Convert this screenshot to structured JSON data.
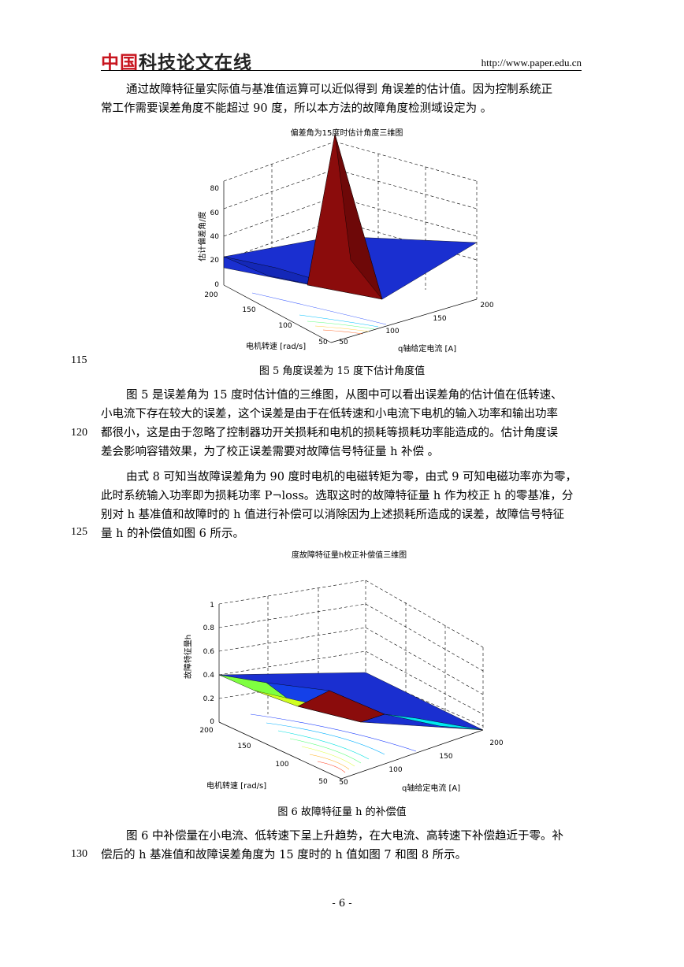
{
  "header": {
    "logo_red": "中国",
    "logo_dark": "科技论文在线",
    "url": "http://www.paper.edu.cn"
  },
  "para1": [
    "通过故障特征量实际值与基准值运算可以近似得到 角误差的估计值。因为控制系统正",
    "常工作需要误差角度不能超过 90 度，所以本方法的故障角度检测域设定为  。"
  ],
  "figure5": {
    "title": "偏差角为15度时估计角度三维图",
    "zlabel": "估计偏差角/度",
    "xlabel": "电机转速 [rad/s]",
    "ylabel": "q轴给定电流 [A]",
    "z_ticks": [
      "0",
      "20",
      "40",
      "60",
      "80"
    ],
    "x_ticks": [
      "200",
      "150",
      "100",
      "50"
    ],
    "y_ticks": [
      "50",
      "100",
      "150",
      "200"
    ],
    "caption": "图 5  角度误差为 15 度下估计角度值",
    "line_number": "115"
  },
  "para2": [
    "图 5 是误差角为 15 度时估计值的三维图，从图中可以看出误差角的估计值在低转速、",
    "小电流下存在较大的误差，这个误差是由于在低转速和小电流下电机的输入功率和输出功率",
    "都很小，这是由于忽略了控制器功开关损耗和电机的损耗等损耗功率能造成的。估计角度误",
    "差会影响容错效果，为了校正误差需要对故障信号特征量 h 补偿  。"
  ],
  "para3": [
    "由式 8 可知当故障误差角为 90 度时电机的电磁转矩为零，由式 9 可知电磁功率亦为零，",
    "此时系统输入功率即为损耗功率 P¬loss。选取这时的故障特征量 h 作为校正 h 的零基准，分",
    "别对 h 基准值和故障时的 h 值进行补偿可以消除因为上述损耗所造成的误差，故障信号特征",
    "量 h 的补偿值如图 6 所示。"
  ],
  "para2_line_number": "120",
  "para3_line_number": "125",
  "figure6": {
    "title": "度故障特征量h校正补偿值三维图",
    "zlabel": "故障特征量h",
    "xlabel": "电机转速 [rad/s]",
    "ylabel": "q轴给定电流 [A]",
    "z_ticks": [
      "0",
      "0.2",
      "0.4",
      "0.6",
      "0.8",
      "1"
    ],
    "x_ticks": [
      "200",
      "150",
      "100",
      "50"
    ],
    "y_ticks": [
      "50",
      "100",
      "150",
      "200"
    ],
    "caption": "图 6  故障特征量 h 的补偿值"
  },
  "para4": [
    "图 6 中补偿量在小电流、低转速下呈上升趋势，在大电流、高转速下补偿趋近于零。补",
    "偿后的 h 基准值和故障误差角度为 15 度时的 h 值如图 7 和图 8 所示。"
  ],
  "para4_line_number": "130",
  "footer": {
    "page": "- 6 -"
  },
  "colors": {
    "logo_red": "#c8141e",
    "surface_blue": "#1a2fd0",
    "peak_red": "#8b0c0c"
  }
}
